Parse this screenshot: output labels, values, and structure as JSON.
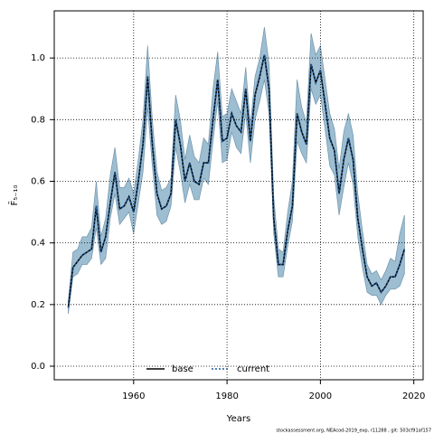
{
  "chart_data": {
    "type": "line",
    "xlabel": "Years",
    "ylabel": "F̄₅₋₁₀",
    "footnote": "stockassessment.org, NEAcod-2019_exp, r11288 , git: 503cf91af157",
    "x": [
      1946,
      1947,
      1948,
      1949,
      1950,
      1951,
      1952,
      1953,
      1954,
      1955,
      1956,
      1957,
      1958,
      1959,
      1960,
      1961,
      1962,
      1963,
      1964,
      1965,
      1966,
      1967,
      1968,
      1969,
      1970,
      1971,
      1972,
      1973,
      1974,
      1975,
      1976,
      1977,
      1978,
      1979,
      1980,
      1981,
      1982,
      1983,
      1984,
      1985,
      1986,
      1987,
      1988,
      1989,
      1990,
      1991,
      1992,
      1993,
      1994,
      1995,
      1996,
      1997,
      1998,
      1999,
      2000,
      2001,
      2002,
      2003,
      2004,
      2005,
      2006,
      2007,
      2008,
      2009,
      2010,
      2011,
      2012,
      2013,
      2014,
      2015,
      2016,
      2017,
      2018
    ],
    "series": [
      {
        "name": "base",
        "color": "#000000",
        "dash": "solid",
        "values": [
          0.19,
          0.32,
          0.34,
          0.36,
          0.37,
          0.38,
          0.52,
          0.37,
          0.42,
          0.53,
          0.63,
          0.51,
          0.52,
          0.55,
          0.5,
          0.6,
          0.72,
          0.94,
          0.72,
          0.56,
          0.51,
          0.52,
          0.56,
          0.8,
          0.72,
          0.6,
          0.66,
          0.6,
          0.59,
          0.66,
          0.66,
          0.8,
          0.93,
          0.73,
          0.74,
          0.82,
          0.78,
          0.76,
          0.9,
          0.73,
          0.88,
          0.94,
          1.01,
          0.9,
          0.48,
          0.33,
          0.33,
          0.44,
          0.52,
          0.82,
          0.76,
          0.72,
          0.98,
          0.92,
          0.96,
          0.85,
          0.74,
          0.7,
          0.56,
          0.67,
          0.74,
          0.67,
          0.48,
          0.38,
          0.29,
          0.26,
          0.27,
          0.24,
          0.26,
          0.29,
          0.29,
          0.33,
          0.38
        ]
      },
      {
        "name": "current",
        "color": "#1f5a99",
        "dash": "dotted",
        "values": [
          0.19,
          0.32,
          0.34,
          0.36,
          0.37,
          0.38,
          0.52,
          0.37,
          0.42,
          0.53,
          0.63,
          0.51,
          0.52,
          0.55,
          0.5,
          0.6,
          0.72,
          0.94,
          0.72,
          0.56,
          0.51,
          0.52,
          0.56,
          0.8,
          0.72,
          0.6,
          0.66,
          0.6,
          0.59,
          0.66,
          0.66,
          0.8,
          0.93,
          0.73,
          0.74,
          0.82,
          0.78,
          0.76,
          0.9,
          0.73,
          0.88,
          0.94,
          1.01,
          0.9,
          0.48,
          0.33,
          0.33,
          0.44,
          0.52,
          0.82,
          0.76,
          0.72,
          0.98,
          0.92,
          0.96,
          0.85,
          0.74,
          0.7,
          0.56,
          0.67,
          0.74,
          0.67,
          0.48,
          0.38,
          0.29,
          0.26,
          0.27,
          0.24,
          0.26,
          0.29,
          0.29,
          0.33,
          0.38
        ]
      }
    ],
    "band": {
      "color": "#9dbdd1",
      "lower": [
        0.17,
        0.29,
        0.3,
        0.33,
        0.33,
        0.35,
        0.45,
        0.33,
        0.35,
        0.48,
        0.56,
        0.46,
        0.48,
        0.5,
        0.43,
        0.53,
        0.63,
        0.84,
        0.65,
        0.49,
        0.46,
        0.47,
        0.52,
        0.71,
        0.63,
        0.53,
        0.59,
        0.54,
        0.54,
        0.61,
        0.59,
        0.73,
        0.86,
        0.66,
        0.67,
        0.76,
        0.71,
        0.69,
        0.82,
        0.66,
        0.8,
        0.86,
        0.93,
        0.82,
        0.43,
        0.29,
        0.29,
        0.39,
        0.47,
        0.73,
        0.69,
        0.66,
        0.9,
        0.85,
        0.88,
        0.77,
        0.65,
        0.62,
        0.49,
        0.58,
        0.66,
        0.59,
        0.42,
        0.32,
        0.24,
        0.23,
        0.23,
        0.2,
        0.23,
        0.25,
        0.25,
        0.26,
        0.3
      ],
      "upper": [
        0.21,
        0.37,
        0.38,
        0.42,
        0.42,
        0.45,
        0.6,
        0.42,
        0.48,
        0.62,
        0.71,
        0.58,
        0.58,
        0.61,
        0.56,
        0.67,
        0.8,
        1.04,
        0.8,
        0.63,
        0.57,
        0.58,
        0.61,
        0.88,
        0.8,
        0.67,
        0.75,
        0.68,
        0.66,
        0.74,
        0.72,
        0.9,
        1.02,
        0.81,
        0.82,
        0.9,
        0.86,
        0.82,
        0.97,
        0.78,
        0.94,
        1.0,
        1.1,
        0.98,
        0.55,
        0.38,
        0.37,
        0.5,
        0.6,
        0.93,
        0.84,
        0.79,
        1.08,
        1.01,
        1.04,
        0.93,
        0.82,
        0.77,
        0.64,
        0.76,
        0.82,
        0.75,
        0.56,
        0.44,
        0.33,
        0.3,
        0.31,
        0.28,
        0.31,
        0.35,
        0.34,
        0.43,
        0.49
      ]
    },
    "xlim": [
      1943,
      2022
    ],
    "ylim": [
      -0.044,
      1.153
    ],
    "xticks": [
      1960,
      1980,
      2000,
      2020
    ],
    "yticks": [
      {
        "value": 0,
        "label": "0.0"
      },
      0.2,
      0.4,
      0.6,
      0.8,
      {
        "value": 1,
        "label": "1.0"
      }
    ],
    "grid": true,
    "legend": "bottom"
  }
}
